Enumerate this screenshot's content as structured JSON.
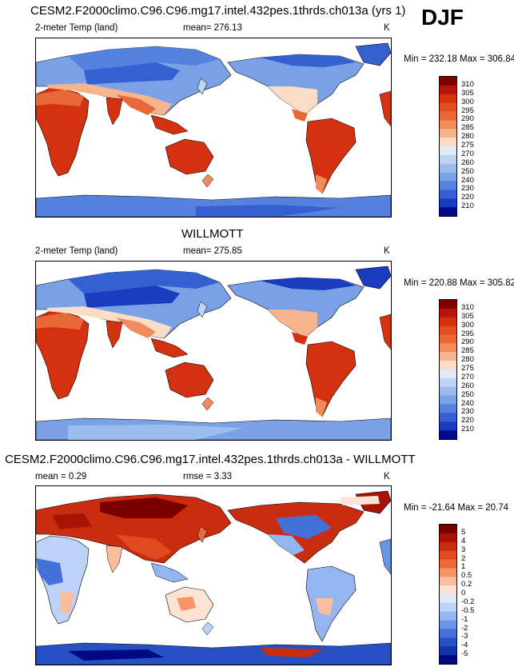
{
  "season": "DJF",
  "panels": [
    {
      "id": "model",
      "title": "CESM2.F2000climo.C96.C96.mg17.intel.432pes.1thrds.ch013a (yrs 1)",
      "left_label": "2-meter Temp (land)",
      "center_label": "mean= 276.13",
      "units": "K",
      "minmax": "Min = 232.18 Max = 306.84",
      "colorbar": {
        "levels": [
          "310",
          "305",
          "300",
          "295",
          "290",
          "285",
          "280",
          "275",
          "270",
          "260",
          "250",
          "240",
          "230",
          "220",
          "210"
        ],
        "colors": [
          "#800000",
          "#b5150b",
          "#d3310f",
          "#e34f1f",
          "#ea6837",
          "#f08c5c",
          "#f6b48f",
          "#fbdcc4",
          "#e0e9f8",
          "#c0d3f3",
          "#9dbcee",
          "#7aa1e6",
          "#5482de",
          "#3460d2",
          "#1a3cc0",
          "#000a8c"
        ]
      }
    },
    {
      "id": "obs",
      "title": "WILLMOTT",
      "left_label": "2-meter Temp (land)",
      "center_label": "mean= 275.85",
      "units": "K",
      "minmax": "Min = 220.88 Max = 305.82",
      "colorbar": {
        "levels": [
          "310",
          "305",
          "300",
          "295",
          "290",
          "285",
          "280",
          "275",
          "270",
          "260",
          "250",
          "240",
          "230",
          "220",
          "210"
        ],
        "colors": [
          "#800000",
          "#b5150b",
          "#d3310f",
          "#e34f1f",
          "#ea6837",
          "#f08c5c",
          "#f6b48f",
          "#fbdcc4",
          "#e0e9f8",
          "#c0d3f3",
          "#9dbcee",
          "#7aa1e6",
          "#5482de",
          "#3460d2",
          "#1a3cc0",
          "#000a8c"
        ]
      }
    },
    {
      "id": "diff",
      "title": "CESM2.F2000climo.C96.C96.mg17.intel.432pes.1thrds.ch013a - WILLMOTT",
      "left_label": "mean =   0.29",
      "center_label": "rmse =   3.33",
      "units": "K",
      "minmax": "Min = -21.64 Max =  20.74",
      "colorbar": {
        "levels": [
          "5",
          "4",
          "3",
          "2",
          "1",
          "0.5",
          "0.2",
          "0",
          "-0.2",
          "-0.5",
          "-1",
          "-2",
          "-3",
          "-4",
          "-5"
        ],
        "colors": [
          "#7a0000",
          "#a81307",
          "#c92c0f",
          "#e04a1f",
          "#ec6a3a",
          "#f59466",
          "#fbbd9e",
          "#fde3d4",
          "#dde9fb",
          "#bcd2f6",
          "#94b5ef",
          "#6a94e6",
          "#4471d8",
          "#2750c4",
          "#1234a8",
          "#000a80"
        ]
      }
    }
  ],
  "chart_data": [
    {
      "type": "heatmap",
      "title": "CESM2.F2000climo.C96.C96.mg17.intel.432pes.1thrds.ch013a (yrs 1)",
      "variable": "2-meter Temp (land)",
      "units": "K",
      "mean": 276.13,
      "min": 232.18,
      "max": 306.84,
      "projection": "cylindrical equidistant, 0-360 longitude centered on Pacific"
    },
    {
      "type": "heatmap",
      "title": "WILLMOTT",
      "variable": "2-meter Temp (land)",
      "units": "K",
      "mean": 275.85,
      "min": 220.88,
      "max": 305.82
    },
    {
      "type": "heatmap",
      "title": "CESM2.F2000climo.C96.C96.mg17.intel.432pes.1thrds.ch013a - WILLMOTT",
      "units": "K",
      "mean": 0.29,
      "rmse": 3.33,
      "min": -21.64,
      "max": 20.74
    }
  ]
}
